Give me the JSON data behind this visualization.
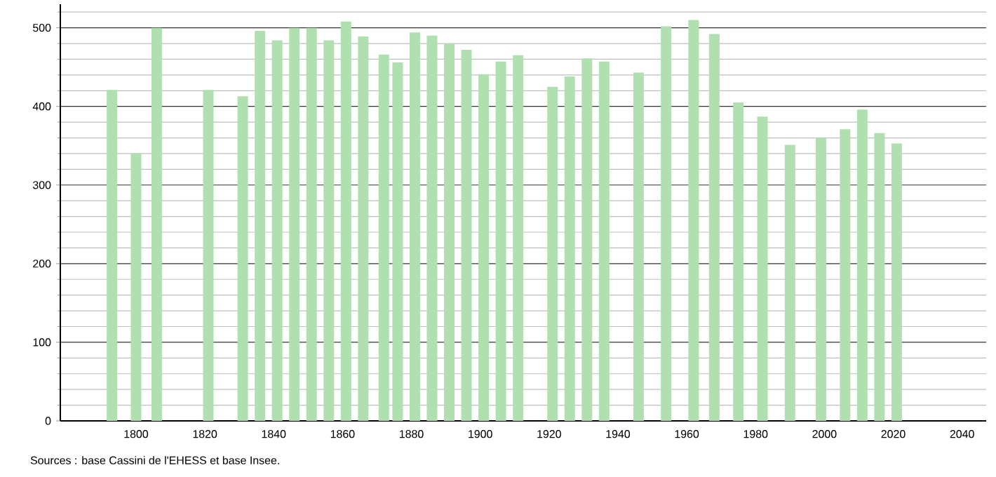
{
  "chart_data": {
    "type": "bar",
    "x": [
      1793,
      1800,
      1806,
      1821,
      1831,
      1836,
      1841,
      1846,
      1851,
      1856,
      1861,
      1866,
      1872,
      1876,
      1881,
      1886,
      1891,
      1896,
      1901,
      1906,
      1911,
      1921,
      1926,
      1931,
      1936,
      1946,
      1954,
      1962,
      1968,
      1975,
      1982,
      1990,
      1999,
      2006,
      2011,
      2016,
      2021
    ],
    "values": [
      421,
      340,
      500,
      421,
      413,
      496,
      484,
      500,
      500,
      484,
      508,
      489,
      466,
      456,
      494,
      490,
      480,
      472,
      441,
      457,
      465,
      425,
      438,
      461,
      457,
      443,
      502,
      510,
      492,
      405,
      387,
      351,
      360,
      371,
      396,
      366,
      353
    ],
    "color": "#b0e0b0",
    "xlim": [
      1778,
      2047
    ],
    "xticks": [
      1800,
      1820,
      1840,
      1860,
      1880,
      1900,
      1920,
      1940,
      1960,
      1980,
      2000,
      2020,
      2040
    ],
    "ylim": [
      0,
      530
    ],
    "yticks": [
      0,
      {
        "value": 20,
        "label": null
      },
      {
        "value": 40,
        "label": null
      },
      {
        "value": 60,
        "label": null
      },
      {
        "value": 80,
        "label": null
      },
      100,
      {
        "value": 120,
        "label": null
      },
      {
        "value": 140,
        "label": null
      },
      {
        "value": 160,
        "label": null
      },
      {
        "value": 180,
        "label": null
      },
      200,
      {
        "value": 220,
        "label": null
      },
      {
        "value": 240,
        "label": null
      },
      {
        "value": 260,
        "label": null
      },
      {
        "value": 280,
        "label": null
      },
      300,
      {
        "value": 320,
        "label": null
      },
      {
        "value": 340,
        "label": null
      },
      {
        "value": 360,
        "label": null
      },
      {
        "value": 380,
        "label": null
      },
      400,
      {
        "value": 420,
        "label": null
      },
      {
        "value": 440,
        "label": null
      },
      {
        "value": 460,
        "label": null
      },
      {
        "value": 480,
        "label": null
      },
      500,
      {
        "value": 520,
        "label": null
      }
    ],
    "grid": "y",
    "annotations": [
      "Sources : base Cassini de l'EHESS et base Insee."
    ]
  }
}
